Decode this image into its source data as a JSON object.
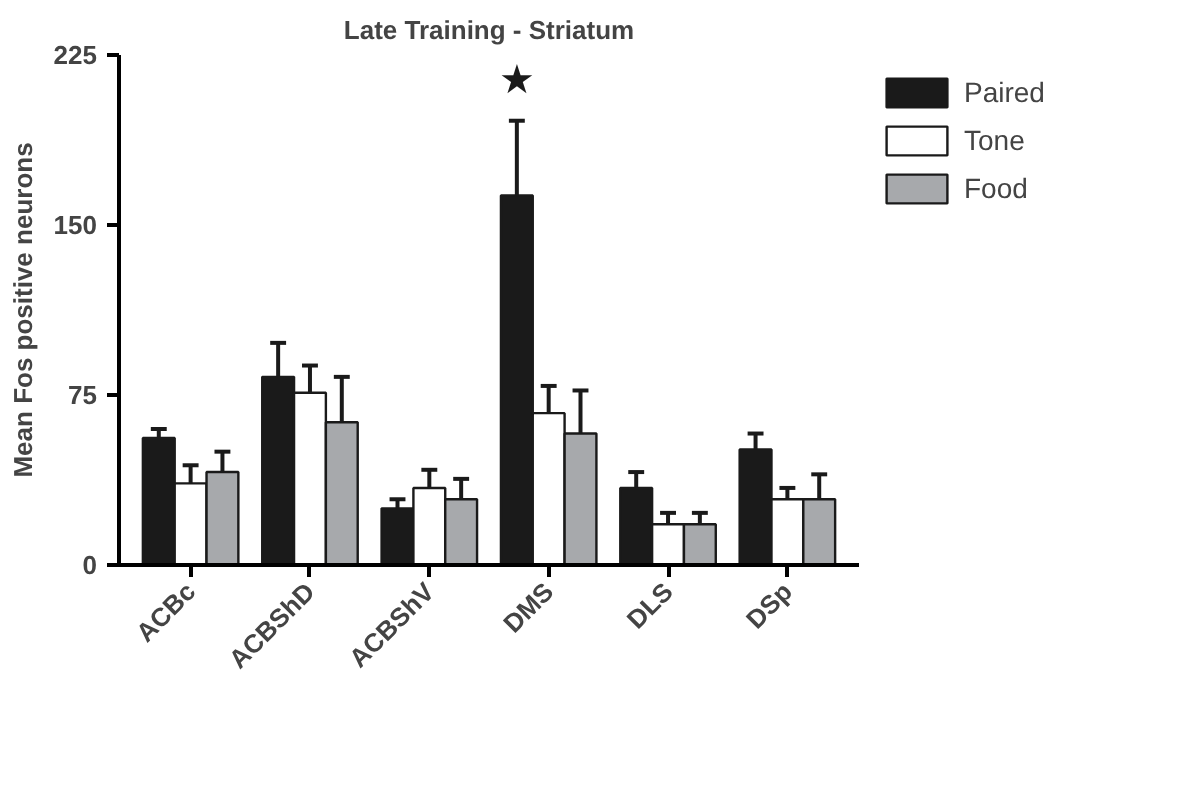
{
  "chart_data": {
    "type": "bar",
    "title": "Late Training - Striatum",
    "ylabel": "Mean Fos positive neurons",
    "categories": [
      "ACBc",
      "ACBShD",
      "ACBShV",
      "DMS",
      "DLS",
      "DSp"
    ],
    "series": [
      {
        "name": "Paired",
        "color": "#1a1a1a",
        "values": [
          56,
          83,
          25,
          163,
          34,
          51
        ],
        "errors": [
          [
            56,
            60
          ],
          [
            83,
            98
          ],
          [
            25,
            29
          ],
          [
            163,
            196
          ],
          [
            34,
            41
          ],
          [
            51,
            58
          ]
        ]
      },
      {
        "name": "Tone",
        "color": "#ffffff",
        "values": [
          36,
          76,
          34,
          67,
          18,
          29
        ],
        "errors": [
          [
            36,
            44
          ],
          [
            76,
            88
          ],
          [
            34,
            42
          ],
          [
            67,
            79
          ],
          [
            18,
            23
          ],
          [
            29,
            34
          ]
        ]
      },
      {
        "name": "Food",
        "color": "#a7a9ac",
        "values": [
          41,
          63,
          29,
          58,
          18,
          29
        ],
        "errors": [
          [
            41,
            50
          ],
          [
            63,
            83
          ],
          [
            29,
            38
          ],
          [
            58,
            77
          ],
          [
            18,
            23
          ],
          [
            29,
            40
          ]
        ]
      }
    ],
    "ylim": [
      0,
      225
    ],
    "yticks": [
      0,
      75,
      150,
      225
    ],
    "grid": false,
    "legend": "top right",
    "annotations": [
      "★"
    ]
  }
}
